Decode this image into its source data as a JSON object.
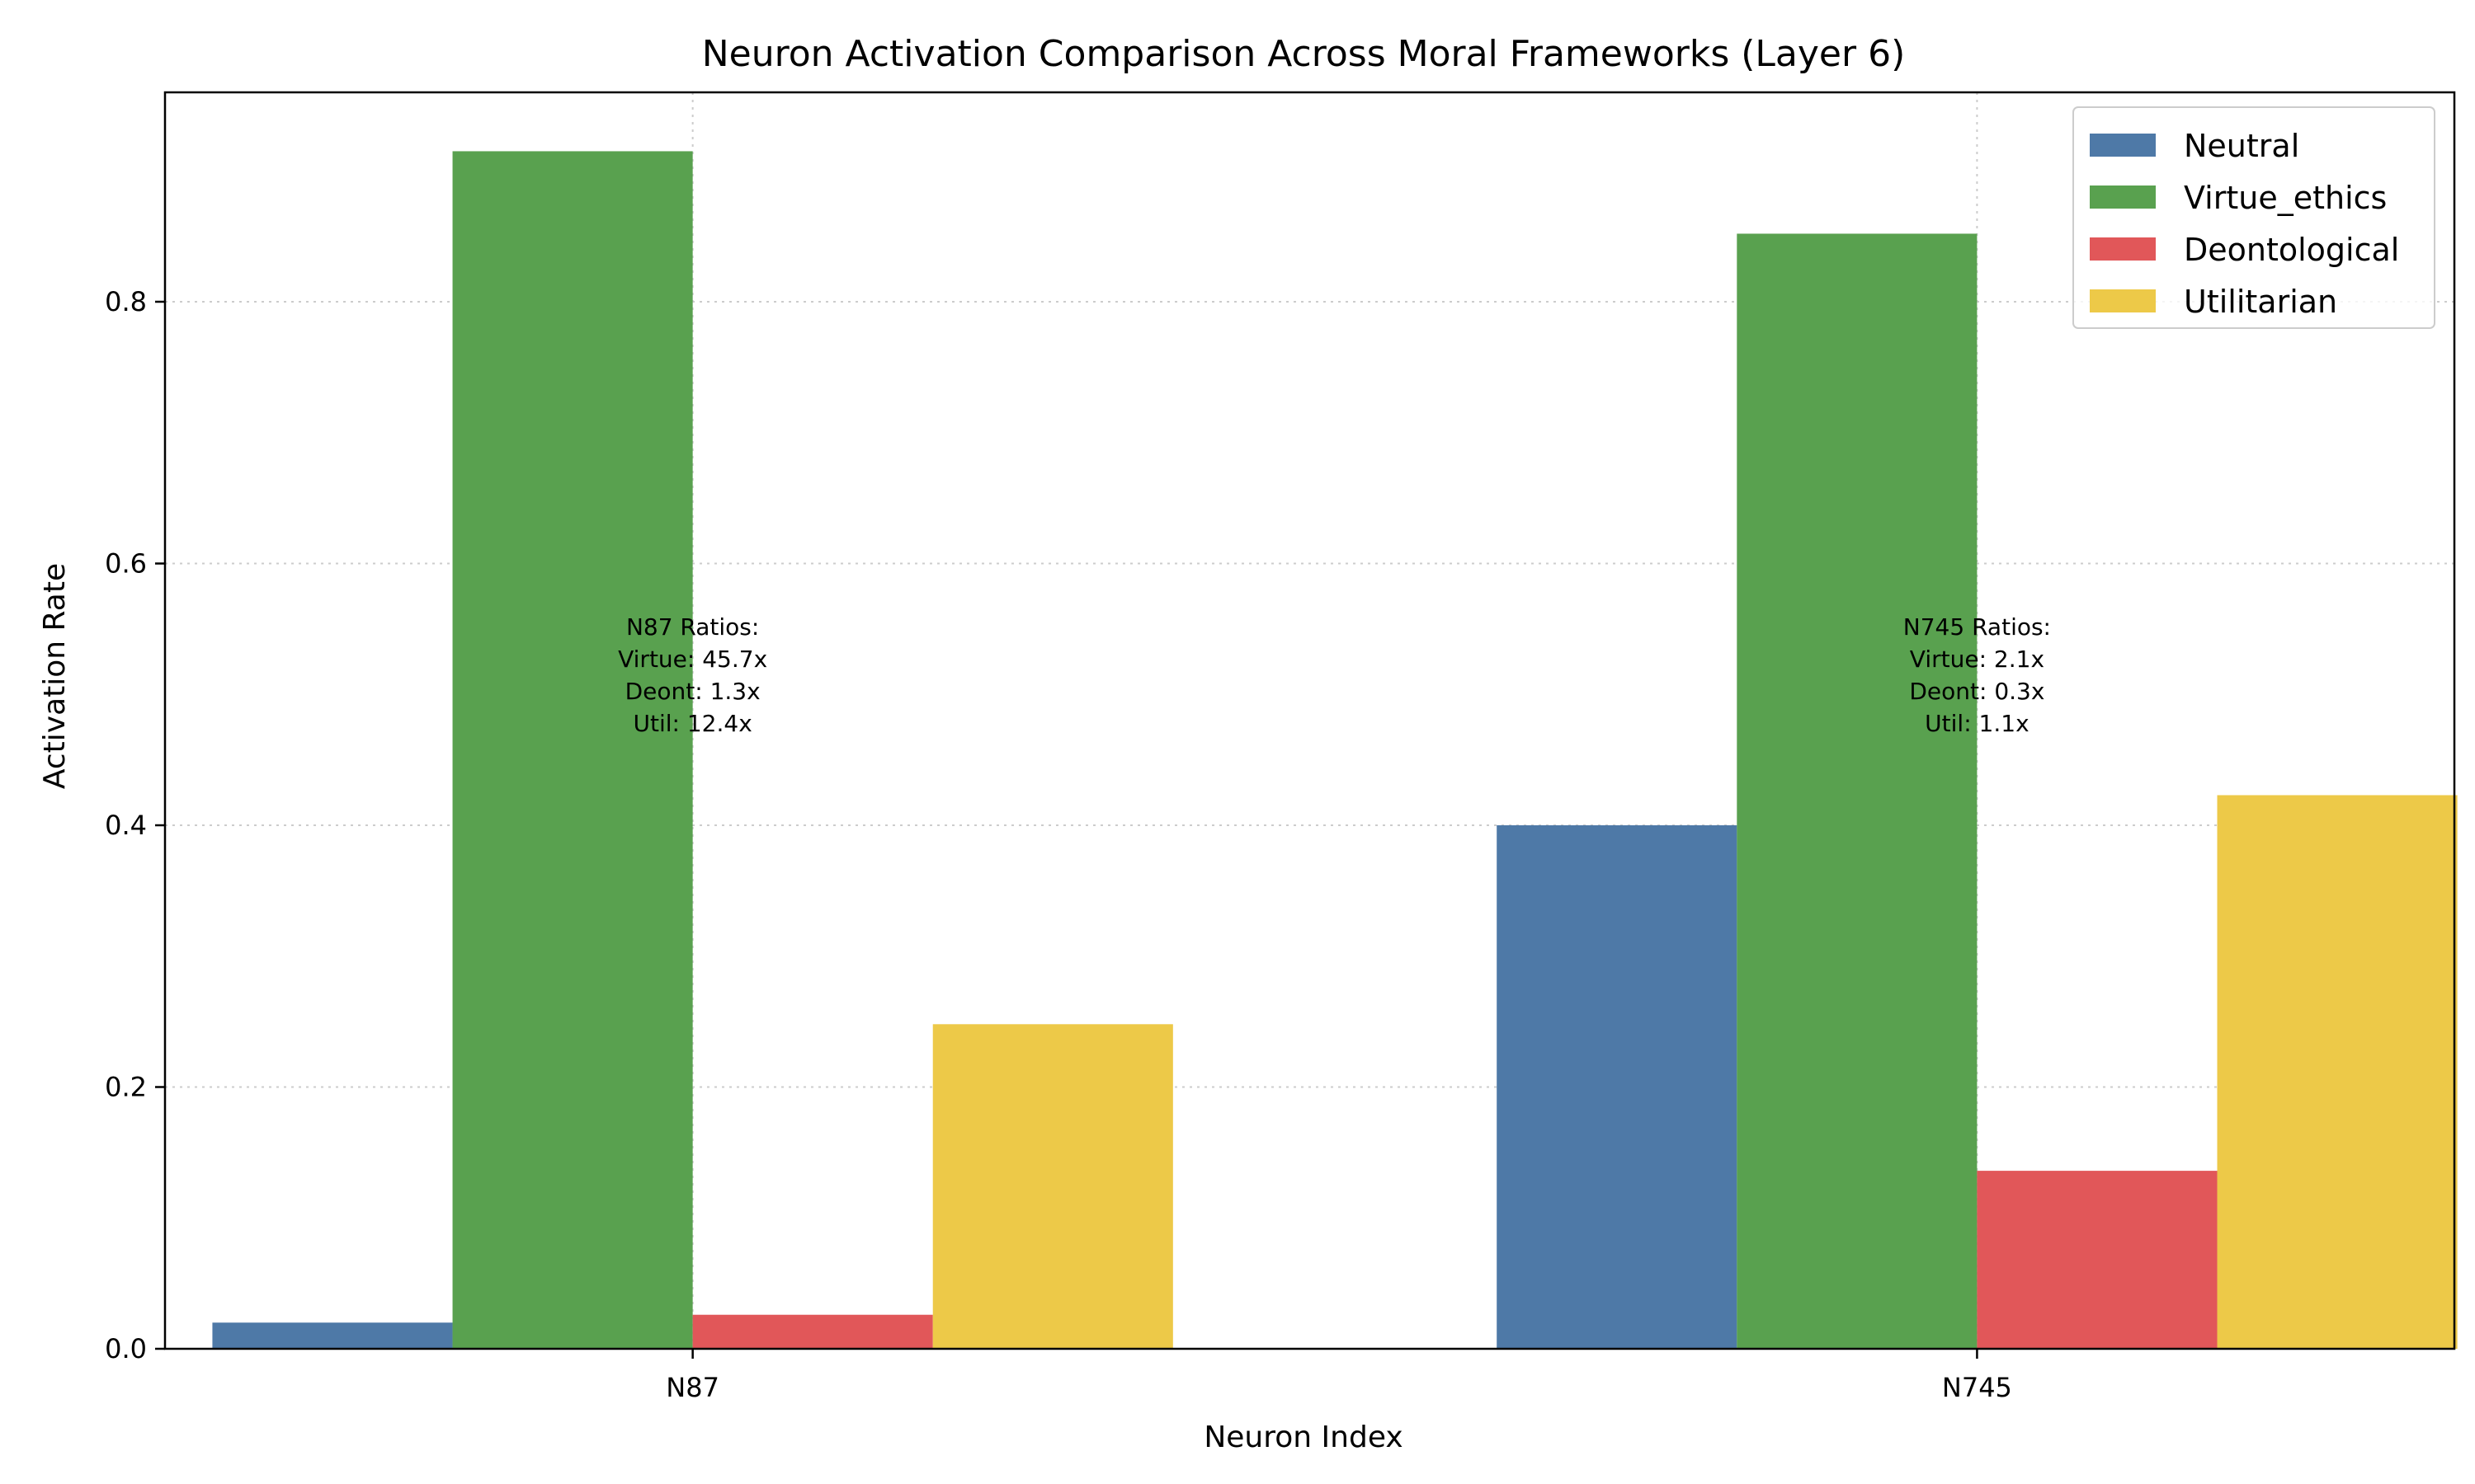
{
  "chart_data": {
    "type": "bar",
    "title": "Neuron Activation Comparison Across Moral Frameworks (Layer 6)",
    "xlabel": "Neuron Index",
    "ylabel": "Activation Rate",
    "categories": [
      "N87",
      "N745"
    ],
    "ylim": [
      0,
      0.96
    ],
    "yticks": [
      0.0,
      0.2,
      0.4,
      0.6,
      0.8
    ],
    "ytick_labels": [
      "0.0",
      "0.2",
      "0.4",
      "0.6",
      "0.8"
    ],
    "grid": true,
    "legend_position": "top-right",
    "series": [
      {
        "name": "Neutral",
        "color": "#4e79a7",
        "values": [
          0.02,
          0.4
        ]
      },
      {
        "name": "Virtue_ethics",
        "color": "#59a14f",
        "values": [
          0.915,
          0.852
        ]
      },
      {
        "name": "Deontological",
        "color": "#e15759",
        "values": [
          0.026,
          0.136
        ]
      },
      {
        "name": "Utilitarian",
        "color": "#edc948",
        "values": [
          0.248,
          0.423
        ]
      }
    ],
    "annotations": [
      {
        "category": "N87",
        "y": 0.515,
        "lines": [
          "N87 Ratios:",
          "Virtue: 45.7x",
          "Deont: 1.3x",
          "Util: 12.4x"
        ]
      },
      {
        "category": "N745",
        "y": 0.515,
        "lines": [
          "N745 Ratios:",
          "Virtue: 2.1x",
          "Deont: 0.3x",
          "Util: 1.1x"
        ]
      }
    ]
  }
}
